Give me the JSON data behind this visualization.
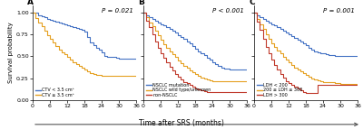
{
  "figsize": [
    4.0,
    1.54
  ],
  "dpi": 100,
  "background": "#ffffff",
  "xlabel": "Time after SRS (months)",
  "ylabel": "Survival probability",
  "panels": [
    "A",
    "B",
    "C"
  ],
  "pvalues": [
    "P = 0.021",
    "P < 0.001",
    "P = 0.001"
  ],
  "panel_A": {
    "curves": [
      {
        "label": "CTV < 3.5 cm³",
        "color": "#4472c4",
        "times": [
          0,
          2,
          3,
          4,
          5,
          6,
          7,
          8,
          9,
          10,
          11,
          12,
          13,
          14,
          15,
          16,
          17,
          18,
          19,
          20,
          21,
          22,
          23,
          24,
          25,
          26,
          27,
          28,
          29,
          30,
          36
        ],
        "surv": [
          1.0,
          0.97,
          0.96,
          0.95,
          0.93,
          0.92,
          0.91,
          0.9,
          0.89,
          0.88,
          0.87,
          0.85,
          0.84,
          0.83,
          0.82,
          0.81,
          0.8,
          0.78,
          0.72,
          0.66,
          0.63,
          0.6,
          0.58,
          0.55,
          0.5,
          0.49,
          0.49,
          0.49,
          0.48,
          0.47,
          0.47
        ]
      },
      {
        "label": "CTV ≥ 3.5 cm³",
        "color": "#e5a020",
        "times": [
          0,
          1,
          2,
          3,
          4,
          5,
          6,
          7,
          8,
          9,
          10,
          11,
          12,
          13,
          14,
          15,
          16,
          17,
          18,
          19,
          20,
          21,
          22,
          23,
          24,
          25,
          26,
          27,
          28,
          30,
          36
        ],
        "surv": [
          1.0,
          0.94,
          0.89,
          0.84,
          0.79,
          0.74,
          0.7,
          0.66,
          0.62,
          0.58,
          0.55,
          0.52,
          0.49,
          0.46,
          0.43,
          0.41,
          0.39,
          0.37,
          0.35,
          0.33,
          0.31,
          0.3,
          0.29,
          0.29,
          0.28,
          0.28,
          0.28,
          0.28,
          0.28,
          0.28,
          0.28
        ]
      }
    ]
  },
  "panel_B": {
    "curves": [
      {
        "label": "NSCLC mutation",
        "color": "#4472c4",
        "times": [
          0,
          1,
          2,
          3,
          4,
          5,
          6,
          7,
          8,
          9,
          10,
          11,
          12,
          13,
          14,
          15,
          16,
          17,
          18,
          19,
          20,
          21,
          22,
          23,
          24,
          25,
          26,
          27,
          28,
          30,
          36
        ],
        "surv": [
          1.0,
          0.97,
          0.95,
          0.93,
          0.91,
          0.89,
          0.87,
          0.85,
          0.83,
          0.81,
          0.79,
          0.77,
          0.74,
          0.72,
          0.7,
          0.67,
          0.65,
          0.62,
          0.59,
          0.56,
          0.53,
          0.51,
          0.48,
          0.46,
          0.43,
          0.41,
          0.39,
          0.37,
          0.36,
          0.35,
          0.35
        ]
      },
      {
        "label": "NSCLC wild type/unknown",
        "color": "#e5a020",
        "times": [
          0,
          1,
          2,
          3,
          4,
          5,
          6,
          7,
          8,
          9,
          10,
          11,
          12,
          13,
          14,
          15,
          16,
          17,
          18,
          19,
          20,
          21,
          22,
          23,
          24,
          25,
          26,
          30,
          36
        ],
        "surv": [
          1.0,
          0.95,
          0.89,
          0.84,
          0.79,
          0.74,
          0.69,
          0.64,
          0.6,
          0.56,
          0.52,
          0.49,
          0.45,
          0.42,
          0.39,
          0.37,
          0.34,
          0.32,
          0.3,
          0.28,
          0.26,
          0.25,
          0.24,
          0.23,
          0.22,
          0.22,
          0.22,
          0.22,
          0.22
        ]
      },
      {
        "label": "non-NSCLC",
        "color": "#c0392b",
        "times": [
          0,
          1,
          2,
          3,
          4,
          5,
          6,
          7,
          8,
          9,
          10,
          11,
          12,
          13,
          14,
          15,
          16,
          17,
          18,
          19,
          20,
          21,
          22,
          23,
          24,
          30,
          36
        ],
        "surv": [
          1.0,
          0.91,
          0.83,
          0.75,
          0.67,
          0.6,
          0.54,
          0.48,
          0.43,
          0.38,
          0.34,
          0.3,
          0.27,
          0.24,
          0.21,
          0.19,
          0.17,
          0.15,
          0.13,
          0.12,
          0.11,
          0.1,
          0.09,
          0.09,
          0.09,
          0.09,
          0.09
        ]
      }
    ]
  },
  "panel_C": {
    "curves": [
      {
        "label": "LDH < 200",
        "color": "#4472c4",
        "times": [
          0,
          1,
          2,
          3,
          4,
          5,
          6,
          7,
          8,
          9,
          10,
          11,
          12,
          13,
          14,
          15,
          16,
          17,
          18,
          19,
          20,
          21,
          22,
          23,
          24,
          25,
          26,
          27,
          28,
          30,
          36
        ],
        "surv": [
          1.0,
          0.97,
          0.95,
          0.93,
          0.91,
          0.89,
          0.87,
          0.85,
          0.83,
          0.81,
          0.79,
          0.77,
          0.75,
          0.73,
          0.71,
          0.69,
          0.67,
          0.65,
          0.63,
          0.6,
          0.58,
          0.56,
          0.55,
          0.54,
          0.53,
          0.52,
          0.51,
          0.51,
          0.5,
          0.5,
          0.5
        ]
      },
      {
        "label": "200 ≤ LDH ≤ 300",
        "color": "#e5a020",
        "times": [
          0,
          1,
          2,
          3,
          4,
          5,
          6,
          7,
          8,
          9,
          10,
          11,
          12,
          13,
          14,
          15,
          16,
          17,
          18,
          19,
          20,
          21,
          22,
          23,
          24,
          25,
          26,
          28,
          30,
          36
        ],
        "surv": [
          1.0,
          0.93,
          0.87,
          0.81,
          0.75,
          0.7,
          0.65,
          0.61,
          0.57,
          0.53,
          0.49,
          0.46,
          0.43,
          0.4,
          0.37,
          0.35,
          0.33,
          0.31,
          0.29,
          0.27,
          0.25,
          0.24,
          0.23,
          0.22,
          0.21,
          0.2,
          0.2,
          0.19,
          0.18,
          0.18
        ]
      },
      {
        "label": "LDH > 300",
        "color": "#c0392b",
        "times": [
          0,
          1,
          2,
          3,
          4,
          5,
          6,
          7,
          8,
          9,
          10,
          11,
          12,
          13,
          14,
          15,
          16,
          17,
          18,
          19,
          20,
          21,
          22,
          23,
          24,
          25,
          30,
          36
        ],
        "surv": [
          1.0,
          0.9,
          0.8,
          0.7,
          0.61,
          0.53,
          0.46,
          0.4,
          0.35,
          0.3,
          0.26,
          0.22,
          0.19,
          0.17,
          0.15,
          0.13,
          0.11,
          0.09,
          0.08,
          0.08,
          0.08,
          0.08,
          0.17,
          0.17,
          0.17,
          0.17,
          0.17,
          0.17
        ]
      }
    ]
  }
}
